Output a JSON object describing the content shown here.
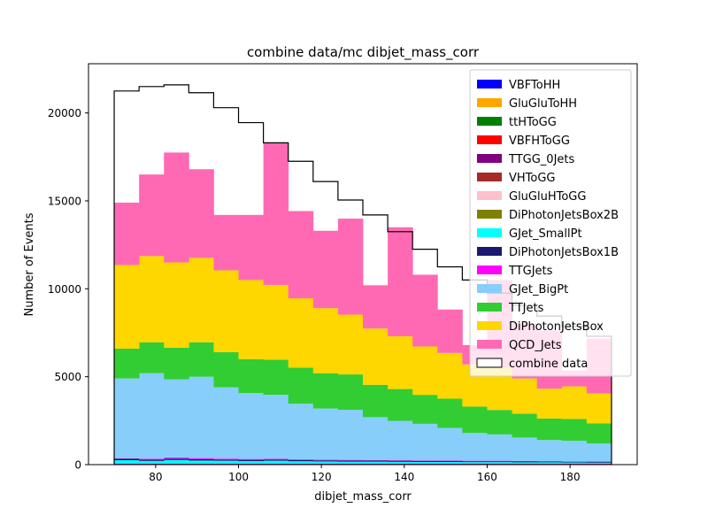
{
  "chart_data": {
    "type": "bar",
    "title": "combine data/mc dibjet_mass_corr",
    "xlabel": "dibjet_mass_corr",
    "ylabel": "Number of Events",
    "xlim": [
      63.8,
      196.2
    ],
    "ylim": [
      0,
      22800
    ],
    "x_edges": [
      70,
      76,
      82,
      88,
      94,
      100,
      106,
      112,
      118,
      124,
      130,
      136,
      142,
      148,
      154,
      160,
      166,
      172,
      178,
      184,
      190
    ],
    "x_ticks": [
      80,
      100,
      120,
      140,
      160,
      180
    ],
    "y_ticks": [
      0,
      5000,
      10000,
      15000,
      20000
    ],
    "legend_position": "top-right",
    "stacked": true,
    "series": [
      {
        "name": "VBFToHH",
        "color": "#0000ff",
        "values": [
          0,
          0,
          0,
          0,
          0,
          0,
          0,
          0,
          0,
          0,
          0,
          0,
          0,
          0,
          0,
          0,
          0,
          0,
          0,
          0
        ]
      },
      {
        "name": "GluGluToHH",
        "color": "#ffa500",
        "values": [
          0,
          0,
          0,
          0,
          0,
          0,
          0,
          0,
          0,
          0,
          0,
          0,
          0,
          0,
          0,
          0,
          0,
          0,
          0,
          0
        ]
      },
      {
        "name": "ttHToGG",
        "color": "#008000",
        "values": [
          30,
          30,
          30,
          30,
          30,
          30,
          30,
          30,
          30,
          30,
          30,
          30,
          30,
          30,
          30,
          30,
          30,
          30,
          30,
          30
        ]
      },
      {
        "name": "VBFHToGG",
        "color": "#ff0000",
        "values": [
          0,
          0,
          0,
          0,
          0,
          0,
          0,
          0,
          0,
          0,
          0,
          0,
          0,
          0,
          0,
          0,
          0,
          0,
          0,
          0
        ]
      },
      {
        "name": "TTGG_0Jets",
        "color": "#800080",
        "values": [
          20,
          20,
          20,
          20,
          20,
          20,
          20,
          20,
          20,
          20,
          20,
          20,
          20,
          20,
          20,
          20,
          20,
          20,
          20,
          20
        ]
      },
      {
        "name": "VHToGG",
        "color": "#a52a2a",
        "values": [
          0,
          0,
          0,
          0,
          0,
          0,
          0,
          0,
          0,
          0,
          0,
          0,
          0,
          0,
          0,
          0,
          0,
          0,
          0,
          0
        ]
      },
      {
        "name": "GluGluHToGG",
        "color": "#ffc0cb",
        "values": [
          0,
          0,
          0,
          0,
          0,
          0,
          0,
          0,
          0,
          0,
          0,
          0,
          0,
          0,
          0,
          0,
          0,
          0,
          0,
          0
        ]
      },
      {
        "name": "DiPhotonJetsBox2B",
        "color": "#808000",
        "values": [
          0,
          0,
          0,
          0,
          0,
          0,
          0,
          0,
          0,
          0,
          0,
          0,
          0,
          0,
          0,
          0,
          0,
          0,
          0,
          0
        ]
      },
      {
        "name": "GJet_SmallPt",
        "color": "#00ffff",
        "values": [
          200,
          160,
          210,
          180,
          170,
          150,
          170,
          140,
          130,
          120,
          120,
          110,
          100,
          100,
          90,
          90,
          80,
          80,
          70,
          60
        ]
      },
      {
        "name": "DiPhotonJetsBox1B",
        "color": "#191970",
        "values": [
          80,
          80,
          80,
          80,
          70,
          70,
          70,
          70,
          60,
          60,
          60,
          60,
          50,
          50,
          50,
          50,
          50,
          40,
          40,
          40
        ]
      },
      {
        "name": "TTGJets",
        "color": "#ff00ff",
        "values": [
          30,
          40,
          60,
          60,
          50,
          50,
          40,
          40,
          40,
          40,
          30,
          30,
          30,
          30,
          30,
          30,
          30,
          30,
          30,
          30
        ]
      },
      {
        "name": "GJet_BigPt",
        "color": "#87cefa",
        "values": [
          4540,
          4870,
          4450,
          4630,
          4060,
          3750,
          3640,
          3160,
          2910,
          2850,
          2440,
          2240,
          2090,
          1860,
          1580,
          1500,
          1330,
          1200,
          1170,
          1020
        ]
      },
      {
        "name": "TTJets",
        "color": "#32cd32",
        "values": [
          1700,
          1760,
          1800,
          1960,
          2000,
          1930,
          2000,
          2050,
          2010,
          2010,
          1840,
          1810,
          1650,
          1660,
          1500,
          1390,
          1360,
          1220,
          1240,
          1150
        ]
      },
      {
        "name": "DiPhotonJetsBox",
        "color": "#ffd700",
        "values": [
          4750,
          4900,
          4850,
          4800,
          4650,
          4500,
          4250,
          3950,
          3700,
          3400,
          3200,
          3000,
          2750,
          2600,
          2400,
          2400,
          2000,
          1700,
          1850,
          1700
        ]
      },
      {
        "name": "QCD_Jets",
        "color": "#ff69b4",
        "values": [
          3550,
          4640,
          6250,
          5040,
          3150,
          3700,
          8080,
          4960,
          4400,
          5460,
          2460,
          6200,
          4080,
          2470,
          1100,
          4990,
          3140,
          3300,
          910,
          3120
        ]
      }
    ],
    "data_series": {
      "name": "combine data",
      "values": [
        21250,
        21500,
        21600,
        21150,
        20300,
        19450,
        18300,
        17250,
        16100,
        15050,
        14200,
        13250,
        12250,
        11250,
        10500,
        9750,
        9050,
        8450,
        7850,
        7300
      ]
    }
  }
}
